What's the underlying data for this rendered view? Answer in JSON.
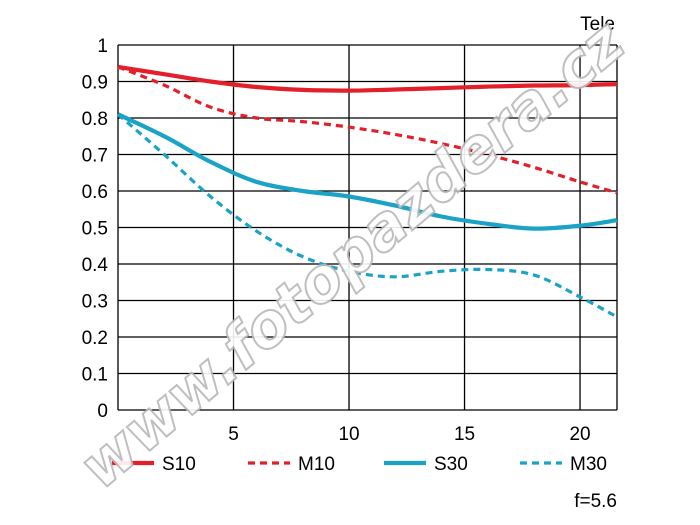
{
  "chart_data": {
    "type": "line",
    "title": "Tele",
    "note": "f=5.6",
    "watermark": "www.fotopazdera.cz",
    "xlim": [
      0,
      21.6
    ],
    "ylim": [
      0,
      1
    ],
    "x_ticks": [
      5,
      10,
      15,
      20
    ],
    "y_ticks": [
      0,
      0.1,
      0.2,
      0.3,
      0.4,
      0.5,
      0.6,
      0.7,
      0.8,
      0.9,
      1
    ],
    "y_tick_labels": [
      "0",
      "0.1",
      "0.2",
      "0.3",
      "0.4",
      "0.5",
      "0.6",
      "0.7",
      "0.8",
      "0.9",
      "1"
    ],
    "grid": true,
    "legend_position": "bottom",
    "series": [
      {
        "name": "S10",
        "color": "#e3202a",
        "dashed": false,
        "x": [
          0,
          2,
          4,
          6,
          8,
          10,
          12,
          14,
          16,
          18,
          20,
          21.6
        ],
        "y": [
          0.94,
          0.92,
          0.9,
          0.885,
          0.877,
          0.875,
          0.878,
          0.882,
          0.886,
          0.889,
          0.89,
          0.893
        ]
      },
      {
        "name": "M10",
        "color": "#e3202a",
        "dashed": true,
        "x": [
          0,
          2,
          4,
          6,
          8,
          10,
          12,
          14,
          16,
          18,
          20,
          21.6
        ],
        "y": [
          0.94,
          0.89,
          0.83,
          0.8,
          0.79,
          0.775,
          0.755,
          0.73,
          0.7,
          0.665,
          0.625,
          0.595
        ]
      },
      {
        "name": "S30",
        "color": "#1aa3c6",
        "dashed": false,
        "x": [
          0,
          2,
          4,
          6,
          8,
          10,
          12,
          14,
          16,
          18,
          20,
          21.6
        ],
        "y": [
          0.81,
          0.75,
          0.68,
          0.625,
          0.6,
          0.585,
          0.56,
          0.53,
          0.51,
          0.497,
          0.505,
          0.52
        ]
      },
      {
        "name": "M30",
        "color": "#1aa3c6",
        "dashed": true,
        "x": [
          0,
          2,
          4,
          6,
          8,
          10,
          12,
          14,
          16,
          18,
          20,
          21.6
        ],
        "y": [
          0.81,
          0.7,
          0.585,
          0.49,
          0.42,
          0.38,
          0.365,
          0.38,
          0.385,
          0.37,
          0.31,
          0.255
        ]
      }
    ]
  }
}
